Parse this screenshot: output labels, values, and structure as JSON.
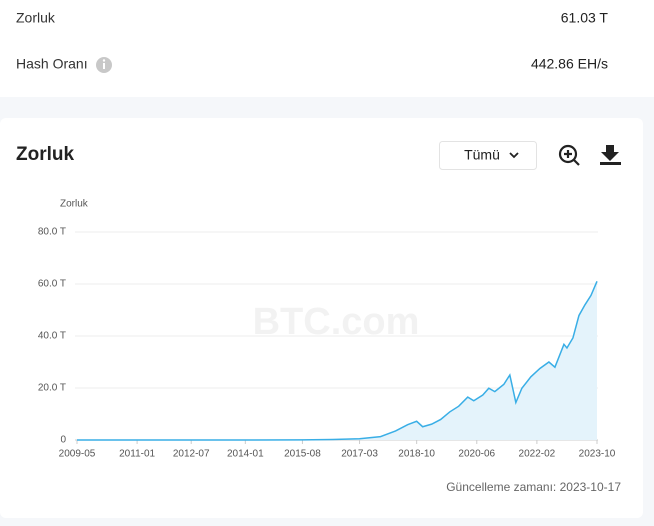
{
  "stats": [
    {
      "label": "Zorluk",
      "value": "61.03 T"
    },
    {
      "label": "Hash Oranı",
      "value": "442.86 EH/s"
    }
  ],
  "card": {
    "title": "Zorluk",
    "range_button": "Tümü",
    "watermark": "BTC.com",
    "updated": "Güncelleme zamanı: 2023-10-17"
  },
  "chart_data": {
    "type": "area",
    "y_label": "Zorluk",
    "color": "#39aee6",
    "fill": "#e4f3fb",
    "grid": true,
    "x": [
      "2009-05",
      "2010-06",
      "2011-01",
      "2012-07",
      "2014-01",
      "2015-08",
      "2016-06",
      "2017-03",
      "2017-10",
      "2018-03",
      "2018-07",
      "2018-10",
      "2018-12",
      "2019-03",
      "2019-06",
      "2019-09",
      "2019-12",
      "2020-03",
      "2020-05",
      "2020-08",
      "2020-10",
      "2020-12",
      "2021-03",
      "2021-05",
      "2021-07",
      "2021-09",
      "2021-12",
      "2022-03",
      "2022-06",
      "2022-08",
      "2022-11",
      "2022-12",
      "2023-02",
      "2023-04",
      "2023-06",
      "2023-08",
      "2023-10"
    ],
    "values": [
      0,
      0,
      0,
      0,
      0,
      0.05,
      0.2,
      0.46,
      1.3,
      3.5,
      5.9,
      7.2,
      5.1,
      6.1,
      7.9,
      10.8,
      13,
      16.5,
      15.1,
      17.3,
      19.9,
      18.6,
      21.4,
      25,
      14.4,
      19.9,
      24.3,
      27.5,
      30,
      28,
      36.8,
      35.4,
      39.3,
      47.9,
      52,
      55.6,
      61.03
    ],
    "xlim": [
      "2009-05",
      "2023-10"
    ],
    "xticks": [
      "2009-05",
      "2011-01",
      "2012-07",
      "2014-01",
      "2015-08",
      "2017-03",
      "2018-10",
      "2020-06",
      "2022-02",
      "2023-10"
    ],
    "ylim": [
      0,
      80
    ],
    "yticks": [
      0,
      {
        "value": 20,
        "label": "20.0 T"
      },
      {
        "value": 40,
        "label": "40.0 T"
      },
      {
        "value": 60,
        "label": "60.0 T"
      },
      {
        "value": 80,
        "label": "80.0 T"
      }
    ]
  }
}
